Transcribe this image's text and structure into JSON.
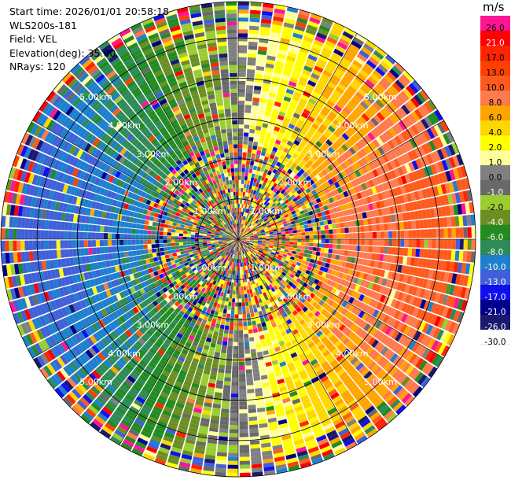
{
  "info": {
    "start_time": "Start time: 2026/01/01 20:58:18",
    "instrument": "WLS200s-181",
    "field": "Field: VEL",
    "elevation": "Elevation(deg): 35.00",
    "nrays": "NRays: 120"
  },
  "colorbar": {
    "unit": "m/s",
    "levels": [
      {
        "label": "26.0",
        "color": "#ff1493"
      },
      {
        "label": "21.0",
        "color": "#ff0000"
      },
      {
        "label": "17.0",
        "color": "#ff2400"
      },
      {
        "label": "13.0",
        "color": "#ff3f00"
      },
      {
        "label": "10.0",
        "color": "#ff5a1e"
      },
      {
        "label": "8.0",
        "color": "#ff7a4c"
      },
      {
        "label": "6.0",
        "color": "#ffa500"
      },
      {
        "label": "4.0",
        "color": "#ffd700"
      },
      {
        "label": "2.0",
        "color": "#ffff00"
      },
      {
        "label": "1.0",
        "color": "#ffff99"
      },
      {
        "label": "0.0",
        "color": "#808080"
      },
      {
        "label": "-1.0",
        "color": "#696969"
      },
      {
        "label": "-2.0",
        "color": "#9acd32"
      },
      {
        "label": "-4.0",
        "color": "#6b8e23"
      },
      {
        "label": "-6.0",
        "color": "#228b22"
      },
      {
        "label": "-8.0",
        "color": "#2e8b57"
      },
      {
        "label": "-10.0",
        "color": "#1e7fcf"
      },
      {
        "label": "-13.0",
        "color": "#3f60d8"
      },
      {
        "label": "-17.0",
        "color": "#1010ee"
      },
      {
        "label": "-21.0",
        "color": "#00008b"
      },
      {
        "label": "-26.0",
        "color": "#191970"
      },
      {
        "label": "-30.0",
        "color": ""
      }
    ]
  },
  "chart_data": {
    "type": "heatmap",
    "projection": "polar (PPI)",
    "field": "VEL",
    "unit": "m/s",
    "nrays": 120,
    "elevation_deg": 35.0,
    "range_rings_km": [
      1.0,
      2.0,
      3.0,
      4.0,
      5.0
    ],
    "ring_labels": [
      "1.00km",
      "2.00km",
      "3.00km",
      "4.00km",
      "5.00km"
    ],
    "max_range_km": 5.9,
    "radial_velocity_pattern": {
      "positive_sector_azimuth_deg": [
        0,
        180
      ],
      "negative_sector_azimuth_deg": [
        180,
        360
      ],
      "peak_abs_velocity_ms": 11,
      "peak_azimuths_deg": [
        90,
        270
      ],
      "near_zero_azimuths_deg": [
        0,
        180
      ],
      "noise_ring_km": [
        1.0,
        2.4
      ],
      "outer_noise_km": 5.4
    },
    "colorbar_ticks": [
      26.0,
      21.0,
      17.0,
      13.0,
      10.0,
      8.0,
      6.0,
      4.0,
      2.0,
      1.0,
      0.0,
      -1.0,
      -2.0,
      -4.0,
      -6.0,
      -8.0,
      -10.0,
      -13.0,
      -17.0,
      -21.0,
      -26.0,
      -30.0
    ]
  }
}
